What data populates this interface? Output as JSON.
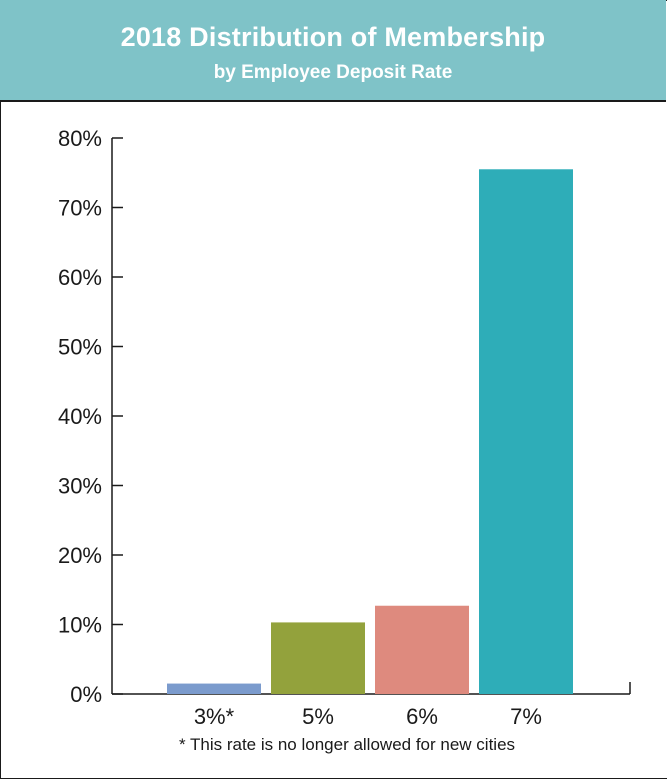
{
  "chart_data": {
    "type": "bar",
    "title": "2018 Distribution of Membership",
    "subtitle": "by Employee Deposit Rate",
    "categories": [
      "3%*",
      "5%",
      "6%",
      "7%"
    ],
    "values": [
      1.5,
      10.3,
      12.7,
      75.5
    ],
    "colors": [
      "#7b9bcd",
      "#93a23c",
      "#de8a7e",
      "#2eadb8"
    ],
    "ylim": [
      0,
      80
    ],
    "yticks": [
      0,
      10,
      20,
      30,
      40,
      50,
      60,
      70,
      80
    ],
    "ytick_labels": [
      "0%",
      "10%",
      "20%",
      "30%",
      "40%",
      "50%",
      "60%",
      "70%",
      "80%"
    ],
    "xlabel": "",
    "ylabel": "",
    "grid": false,
    "footnote": "* This rate is no longer allowed for new cities"
  },
  "style": {
    "header_bg": "#7fc3c8",
    "header_text": "#ffffff",
    "axis_color": "#1a1a1a"
  }
}
